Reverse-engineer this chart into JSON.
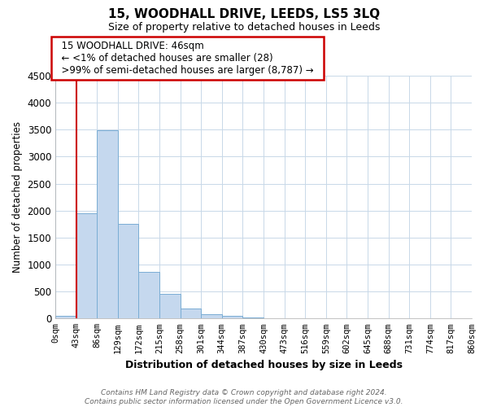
{
  "title": "15, WOODHALL DRIVE, LEEDS, LS5 3LQ",
  "subtitle": "Size of property relative to detached houses in Leeds",
  "xlabel": "Distribution of detached houses by size in Leeds",
  "ylabel": "Number of detached properties",
  "bin_labels": [
    "0sqm",
    "43sqm",
    "86sqm",
    "129sqm",
    "172sqm",
    "215sqm",
    "258sqm",
    "301sqm",
    "344sqm",
    "387sqm",
    "430sqm",
    "473sqm",
    "516sqm",
    "559sqm",
    "602sqm",
    "645sqm",
    "688sqm",
    "731sqm",
    "774sqm",
    "817sqm",
    "860sqm"
  ],
  "bar_heights": [
    50,
    1950,
    3490,
    1760,
    860,
    460,
    185,
    85,
    45,
    20,
    10,
    0,
    0,
    0,
    0,
    0,
    0,
    0,
    0,
    0
  ],
  "bar_color": "#c5d8ee",
  "bar_edge_color": "#7aadd4",
  "marker_color": "#cc0000",
  "ylim": [
    0,
    4500
  ],
  "yticks": [
    0,
    500,
    1000,
    1500,
    2000,
    2500,
    3000,
    3500,
    4000,
    4500
  ],
  "annotation_title": "15 WOODHALL DRIVE: 46sqm",
  "annotation_line1": "← <1% of detached houses are smaller (28)",
  "annotation_line2": ">99% of semi-detached houses are larger (8,787) →",
  "annotation_box_color": "#ffffff",
  "annotation_box_edge": "#cc0000",
  "footer_line1": "Contains HM Land Registry data © Crown copyright and database right 2024.",
  "footer_line2": "Contains public sector information licensed under the Open Government Licence v3.0.",
  "background_color": "#ffffff",
  "grid_color": "#c8d8e8"
}
